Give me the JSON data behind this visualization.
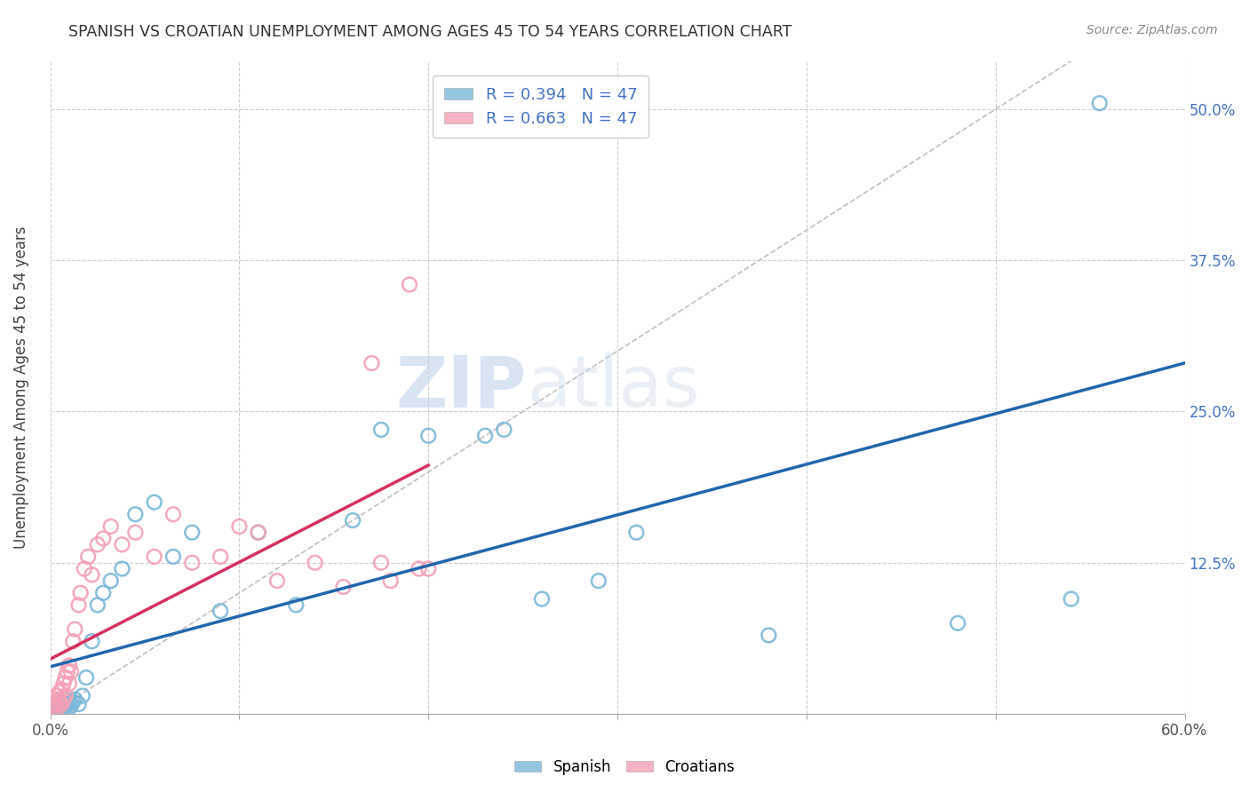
{
  "title": "SPANISH VS CROATIAN UNEMPLOYMENT AMONG AGES 45 TO 54 YEARS CORRELATION CHART",
  "source": "Source: ZipAtlas.com",
  "ylabel": "Unemployment Among Ages 45 to 54 years",
  "xlim": [
    0.0,
    0.6
  ],
  "ylim": [
    0.0,
    0.54
  ],
  "xticks": [
    0.0,
    0.1,
    0.2,
    0.3,
    0.4,
    0.5,
    0.6
  ],
  "xticklabels": [
    "0.0%",
    "",
    "",
    "",
    "",
    "",
    "60.0%"
  ],
  "ytick_positions": [
    0.0,
    0.125,
    0.25,
    0.375,
    0.5
  ],
  "ytick_labels": [
    "",
    "12.5%",
    "25.0%",
    "37.5%",
    "50.0%"
  ],
  "legend_r_spanish": "R = 0.394",
  "legend_n_spanish": "N = 47",
  "legend_r_croatian": "R = 0.663",
  "legend_n_croatian": "N = 47",
  "spanish_color": "#7ab8d9",
  "croatian_color": "#f4a0b5",
  "spanish_line_color": "#2166ac",
  "croatian_line_color": "#d63060",
  "diagonal_color": "#c0c0c0",
  "background_color": "#ffffff",
  "grid_color": "#d0d0d0",
  "watermark_zip": "ZIP",
  "watermark_atlas": "atlas",
  "spanish_x": [
    0.001,
    0.002,
    0.003,
    0.003,
    0.004,
    0.004,
    0.005,
    0.005,
    0.006,
    0.006,
    0.007,
    0.007,
    0.008,
    0.008,
    0.009,
    0.01,
    0.01,
    0.011,
    0.012,
    0.013,
    0.015,
    0.017,
    0.019,
    0.022,
    0.025,
    0.028,
    0.032,
    0.038,
    0.045,
    0.055,
    0.065,
    0.075,
    0.09,
    0.11,
    0.13,
    0.16,
    0.175,
    0.2,
    0.23,
    0.24,
    0.26,
    0.29,
    0.31,
    0.38,
    0.48,
    0.54,
    0.555
  ],
  "spanish_y": [
    0.005,
    0.008,
    0.003,
    0.007,
    0.005,
    0.01,
    0.004,
    0.008,
    0.003,
    0.007,
    0.005,
    0.01,
    0.006,
    0.012,
    0.008,
    0.005,
    0.01,
    0.007,
    0.01,
    0.012,
    0.008,
    0.015,
    0.03,
    0.06,
    0.09,
    0.1,
    0.11,
    0.12,
    0.165,
    0.175,
    0.13,
    0.15,
    0.085,
    0.15,
    0.09,
    0.16,
    0.235,
    0.23,
    0.23,
    0.235,
    0.095,
    0.11,
    0.15,
    0.065,
    0.075,
    0.095,
    0.505
  ],
  "croatian_x": [
    0.001,
    0.001,
    0.002,
    0.002,
    0.003,
    0.003,
    0.004,
    0.004,
    0.005,
    0.005,
    0.006,
    0.006,
    0.007,
    0.007,
    0.008,
    0.008,
    0.009,
    0.01,
    0.01,
    0.011,
    0.012,
    0.013,
    0.015,
    0.016,
    0.018,
    0.02,
    0.022,
    0.025,
    0.028,
    0.032,
    0.038,
    0.045,
    0.055,
    0.065,
    0.075,
    0.09,
    0.1,
    0.11,
    0.12,
    0.14,
    0.155,
    0.17,
    0.175,
    0.18,
    0.19,
    0.195,
    0.2
  ],
  "croatian_y": [
    0.003,
    0.007,
    0.005,
    0.01,
    0.008,
    0.015,
    0.005,
    0.012,
    0.01,
    0.018,
    0.008,
    0.02,
    0.012,
    0.025,
    0.015,
    0.03,
    0.035,
    0.025,
    0.04,
    0.035,
    0.06,
    0.07,
    0.09,
    0.1,
    0.12,
    0.13,
    0.115,
    0.14,
    0.145,
    0.155,
    0.14,
    0.15,
    0.13,
    0.165,
    0.125,
    0.13,
    0.155,
    0.15,
    0.11,
    0.125,
    0.105,
    0.29,
    0.125,
    0.11,
    0.355,
    0.12,
    0.12
  ]
}
